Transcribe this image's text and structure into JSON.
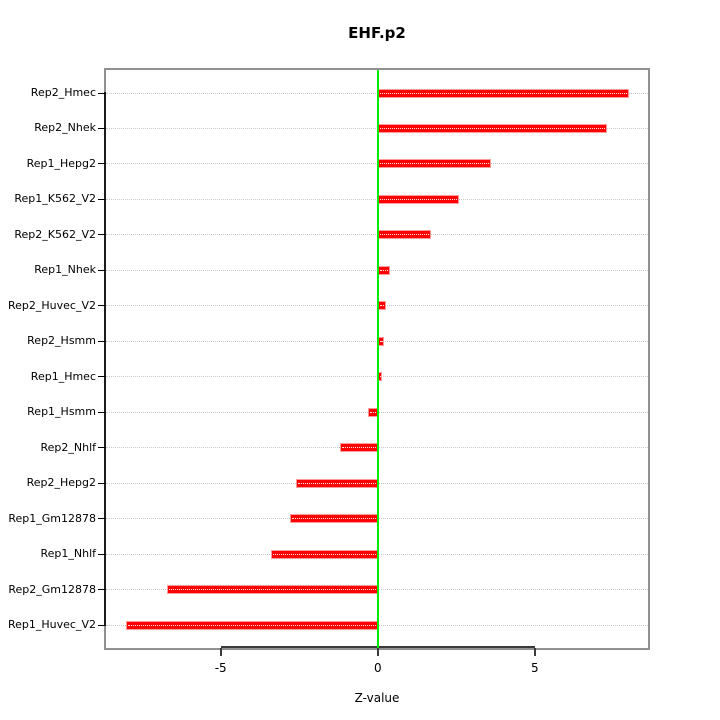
{
  "title": "EHF.p2",
  "chart_data": {
    "type": "bar",
    "orientation": "horizontal",
    "title": "EHF.p2",
    "xlabel": "Z-value",
    "ylabel": "",
    "categories": [
      "Rep2_Hmec",
      "Rep2_Nhek",
      "Rep1_Hepg2",
      "Rep1_K562_V2",
      "Rep2_K562_V2",
      "Rep1_Nhek",
      "Rep2_Huvec_V2",
      "Rep2_Hsmm",
      "Rep1_Hmec",
      "Rep1_Hsmm",
      "Rep2_Nhlf",
      "Rep2_Hepg2",
      "Rep1_Gm12878",
      "Rep1_Nhlf",
      "Rep2_Gm12878",
      "Rep1_Huvec_V2"
    ],
    "values": [
      8.0,
      7.3,
      3.6,
      2.6,
      1.7,
      0.4,
      0.25,
      0.2,
      0.15,
      -0.3,
      -1.2,
      -2.6,
      -2.8,
      -3.4,
      -6.7,
      -8.0
    ],
    "x_ticks": [
      {
        "value": -5,
        "label": "-5"
      },
      {
        "value": 0,
        "label": "0"
      },
      {
        "value": 5,
        "label": "5"
      }
    ],
    "xlim": [
      -8.65,
      8.6
    ],
    "grid": "dotted-horizontal-per-category",
    "legend": "none",
    "zero_reference_line": 0,
    "colors": {
      "bar": "#ff0000",
      "bar_edge": "#ff9a9a",
      "zero_line": "#00ee00",
      "grid_dots": "#c8c8c8",
      "box_border": "#909090",
      "axis_line": "#3a3a3a",
      "text": "#000000"
    }
  }
}
